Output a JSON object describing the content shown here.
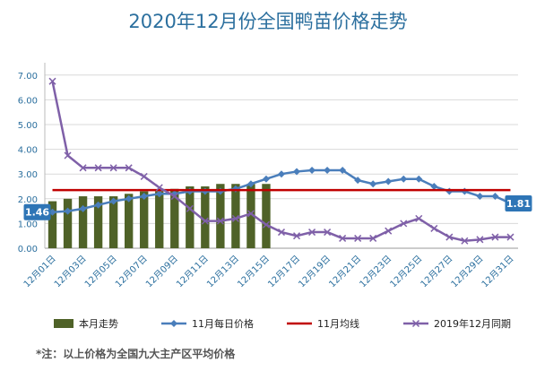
{
  "title": "2020年12月份全国鸭苗价格走势",
  "footnote": "*注：以上价格为全国九大主产区平均价格",
  "chart_data": {
    "type": "line",
    "ylim": [
      0,
      7.5
    ],
    "yticks": [
      "0.00",
      "1.00",
      "2.00",
      "3.00",
      "4.00",
      "5.00",
      "6.00",
      "7.00"
    ],
    "x_days": 31,
    "xtick_labels": [
      "12月01日",
      "12月03日",
      "12月05日",
      "12月07日",
      "12月09日",
      "12月11日",
      "12月13日",
      "12月15日",
      "12月17日",
      "12月19日",
      "12月21日",
      "12月23日",
      "12月25日",
      "12月27日",
      "12月29日",
      "12月31日"
    ],
    "series": [
      {
        "name": "本月走势",
        "kind": "bar",
        "color": "#4f6228",
        "values": [
          1.9,
          2.0,
          2.1,
          2.1,
          2.1,
          2.2,
          2.3,
          2.3,
          2.4,
          2.5,
          2.5,
          2.6,
          2.6,
          2.6,
          2.6
        ]
      },
      {
        "name": "11月每日价格",
        "kind": "line",
        "marker": "diamond",
        "color": "#4a7ebb",
        "values": [
          1.46,
          1.5,
          1.6,
          1.75,
          1.9,
          2.0,
          2.1,
          2.2,
          2.2,
          2.3,
          2.3,
          2.3,
          2.4,
          2.6,
          2.8,
          3.0,
          3.1,
          3.15,
          3.15,
          3.15,
          2.75,
          2.6,
          2.7,
          2.8,
          2.8,
          2.5,
          2.3,
          2.3,
          2.1,
          2.1,
          1.81
        ]
      },
      {
        "name": "11月均线",
        "kind": "line",
        "marker": "none",
        "color": "#c00000",
        "values": [
          2.35
        ]
      },
      {
        "name": "2019年12月同期",
        "kind": "line",
        "marker": "x",
        "color": "#7f60a8",
        "values": [
          6.75,
          3.75,
          3.25,
          3.25,
          3.25,
          3.25,
          2.9,
          2.45,
          2.1,
          1.6,
          1.1,
          1.1,
          1.2,
          1.4,
          0.95,
          0.65,
          0.5,
          0.65,
          0.65,
          0.4,
          0.4,
          0.4,
          0.7,
          1.0,
          1.2,
          0.8,
          0.45,
          0.3,
          0.35,
          0.45,
          0.45
        ]
      }
    ],
    "data_labels": [
      {
        "series": "11月每日价格",
        "day": 1,
        "text": "1.46"
      },
      {
        "series": "11月每日价格",
        "day": 31,
        "text": "1.81"
      }
    ],
    "legend_position": "bottom",
    "grid": true
  }
}
